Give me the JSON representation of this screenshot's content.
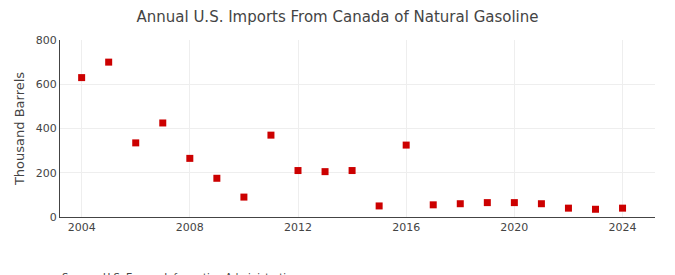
{
  "chart_data": {
    "type": "scatter",
    "title": "Annual U.S. Imports From Canada of Natural Gasoline",
    "ylabel": "Thousand Barrels",
    "source": "Source: U.S. Energy Information Administration",
    "x": [
      2004,
      2005,
      2006,
      2007,
      2008,
      2009,
      2010,
      2011,
      2012,
      2013,
      2014,
      2015,
      2016,
      2017,
      2018,
      2019,
      2020,
      2021,
      2022,
      2023,
      2024
    ],
    "values": [
      630,
      700,
      335,
      425,
      265,
      175,
      90,
      370,
      210,
      205,
      210,
      50,
      325,
      55,
      60,
      65,
      65,
      60,
      40,
      35,
      40
    ],
    "color": "#cc0000",
    "marker": "square",
    "xlim": [
      2003.2,
      2025.2
    ],
    "xticks": [
      2004,
      2008,
      2012,
      2016,
      2020,
      2024
    ],
    "ylim": [
      0,
      800
    ],
    "yticks": [
      0,
      200,
      400,
      600,
      800
    ],
    "grid": true
  }
}
